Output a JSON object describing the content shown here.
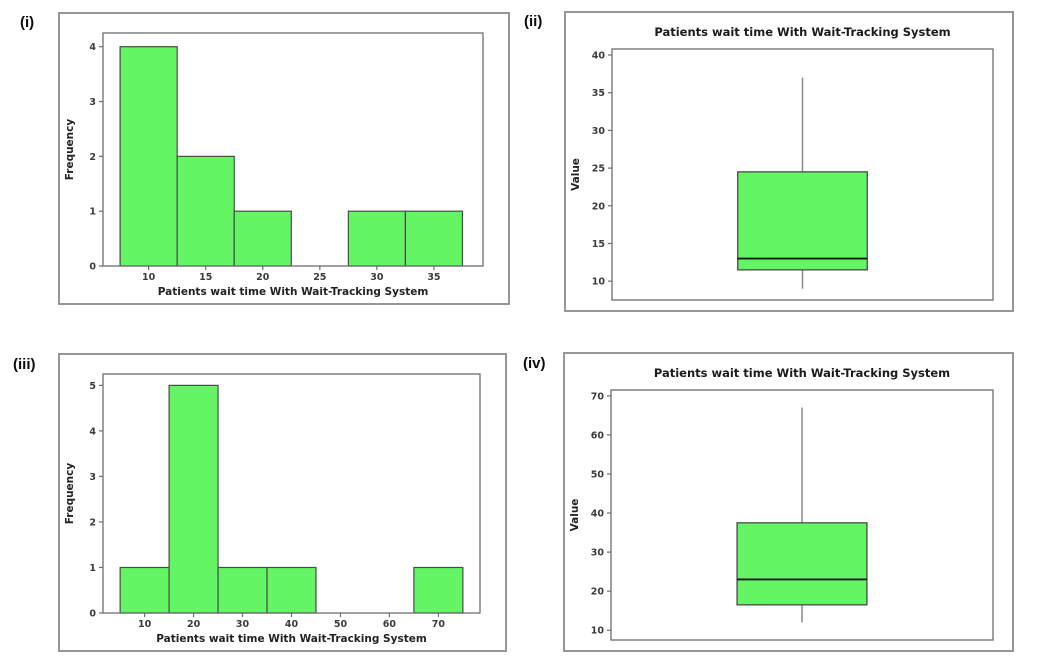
{
  "colors": {
    "bar_fill": "#63f563",
    "bar_edge": "#4a4a4a",
    "spine": "#6e6e6e",
    "whisker": "#8a8a8a",
    "median_line": "#1a1a1a",
    "panel_border": "#979797",
    "tick_text": "#3b3b3b"
  },
  "chart_data": [
    {
      "panel_label": "(i)",
      "type": "bar",
      "subtype": "histogram",
      "title": "",
      "xlabel": "Patients wait time With Wait-Tracking System",
      "ylabel": "Frequency",
      "bin_edges": [
        7.5,
        12.5,
        17.5,
        22.5,
        27.5,
        32.5,
        37.5
      ],
      "frequencies": [
        4,
        2,
        1,
        0,
        1,
        1
      ],
      "xticks": [
        10,
        15,
        20,
        25,
        30,
        35
      ],
      "yticks": [
        0,
        1,
        2,
        3,
        4
      ],
      "xlim": [
        6,
        39.3
      ],
      "ylim": [
        0,
        4.25
      ],
      "grid": false,
      "legend": false
    },
    {
      "panel_label": "(ii)",
      "type": "boxplot",
      "title": "Patients wait time With Wait-Tracking System",
      "xlabel": "",
      "ylabel": "Value",
      "yticks": [
        10,
        15,
        20,
        25,
        30,
        35,
        40
      ],
      "ylim": [
        7.5,
        40.8
      ],
      "box": {
        "whisker_low": 9,
        "q1": 11.5,
        "median": 13,
        "q3": 24.5,
        "whisker_high": 37
      },
      "grid": false,
      "legend": false
    },
    {
      "panel_label": "(iii)",
      "type": "bar",
      "subtype": "histogram",
      "title": "",
      "xlabel": "Patients wait time With Wait-Tracking System",
      "ylabel": "Frequency",
      "bin_edges": [
        5,
        15,
        25,
        35,
        45,
        55,
        65,
        75
      ],
      "frequencies": [
        1,
        5,
        1,
        1,
        0,
        0,
        1
      ],
      "xticks": [
        10,
        20,
        30,
        40,
        50,
        60,
        70
      ],
      "yticks": [
        0,
        1,
        2,
        3,
        4,
        5
      ],
      "xlim": [
        1.5,
        78.5
      ],
      "ylim": [
        0,
        5.25
      ],
      "grid": false,
      "legend": false
    },
    {
      "panel_label": "(iv)",
      "type": "boxplot",
      "title": "Patients wait time With Wait-Tracking System",
      "xlabel": "",
      "ylabel": "Value",
      "yticks": [
        10,
        20,
        30,
        40,
        50,
        60,
        70
      ],
      "ylim": [
        7.5,
        71.5
      ],
      "box": {
        "whisker_low": 12,
        "q1": 16.5,
        "median": 23,
        "q3": 37.5,
        "whisker_high": 67
      },
      "grid": false,
      "legend": false
    }
  ]
}
